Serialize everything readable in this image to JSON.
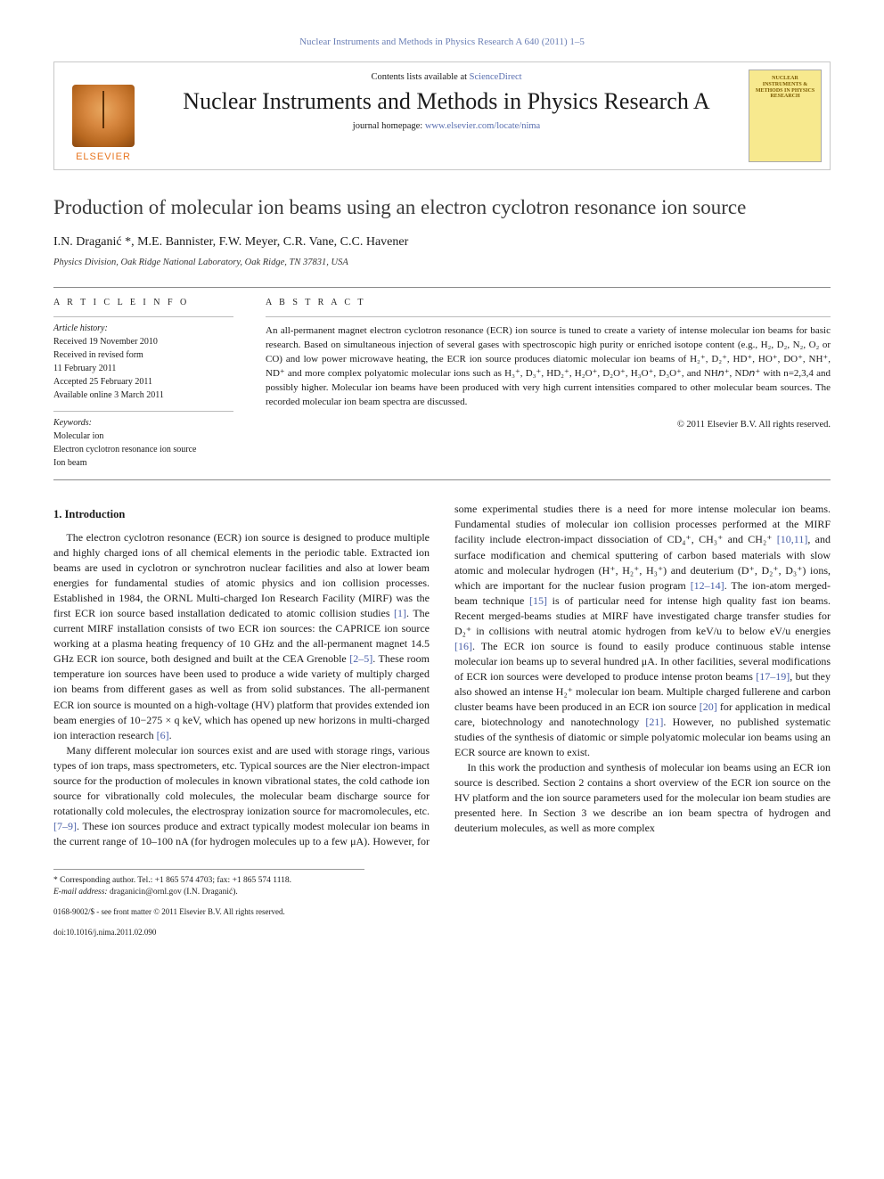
{
  "header": {
    "journal_citation": "Nuclear Instruments and Methods in Physics Research A 640 (2011) 1–5",
    "contents_prefix": "Contents lists available at ",
    "contents_link": "ScienceDirect",
    "journal_title": "Nuclear Instruments and Methods in Physics Research A",
    "homepage_prefix": "journal homepage: ",
    "homepage_link": "www.elsevier.com/locate/nima",
    "publisher": "ELSEVIER",
    "cover_text": "NUCLEAR INSTRUMENTS & METHODS IN PHYSICS RESEARCH"
  },
  "article": {
    "title": "Production of molecular ion beams using an electron cyclotron resonance ion source",
    "authors": "I.N. Draganić *, M.E. Bannister, F.W. Meyer, C.R. Vane, C.C. Havener",
    "affiliation": "Physics Division, Oak Ridge National Laboratory, Oak Ridge, TN 37831, USA"
  },
  "info": {
    "head": "A R T I C L E   I N F O",
    "history_label": "Article history:",
    "received": "Received 19 November 2010",
    "revised1": "Received in revised form",
    "revised2": "11 February 2011",
    "accepted": "Accepted 25 February 2011",
    "online": "Available online 3 March 2011",
    "keywords_label": "Keywords:",
    "kw1": "Molecular ion",
    "kw2": "Electron cyclotron resonance ion source",
    "kw3": "Ion beam"
  },
  "abstract": {
    "head": "A B S T R A C T",
    "text": "An all-permanent magnet electron cyclotron resonance (ECR) ion source is tuned to create a variety of intense molecular ion beams for basic research. Based on simultaneous injection of several gases with spectroscopic high purity or enriched isotope content (e.g., H₂, D₂, N₂, O₂ or CO) and low power microwave heating, the ECR ion source produces diatomic molecular ion beams of H₂⁺, D₂⁺, HD⁺, HO⁺, DO⁺, NH⁺, ND⁺ and more complex polyatomic molecular ions such as H₃⁺, D₃⁺, HD₂⁺, H₂O⁺, D₂O⁺, H₃O⁺, D₃O⁺, and NH𝘯⁺, ND𝘯⁺ with n=2,3,4 and possibly higher. Molecular ion beams have been produced with very high current intensities compared to other molecular beam sources. The recorded molecular ion beam spectra are discussed.",
    "copyright": "© 2011 Elsevier B.V. All rights reserved."
  },
  "body": {
    "sec1_head": "1. Introduction",
    "p1": "The electron cyclotron resonance (ECR) ion source is designed to produce multiple and highly charged ions of all chemical elements in the periodic table. Extracted ion beams are used in cyclotron or synchrotron nuclear facilities and also at lower beam energies for fundamental studies of atomic physics and ion collision processes. Established in 1984, the ORNL Multi-charged Ion Research Facility (MIRF) was the first ECR ion source based installation dedicated to atomic collision studies [1]. The current MIRF installation consists of two ECR ion sources: the CAPRICE ion source working at a plasma heating frequency of 10 GHz and the all-permanent magnet 14.5 GHz ECR ion source, both designed and built at the CEA Grenoble [2–5]. These room temperature ion sources have been used to produce a wide variety of multiply charged ion beams from different gases as well as from solid substances. The all-permanent ECR ion source is mounted on a high-voltage (HV) platform that provides extended ion beam energies of 10−275 × q keV, which has opened up new horizons in multi-charged ion interaction research [6].",
    "p2": "Many different molecular ion sources exist and are used with storage rings, various types of ion traps, mass spectrometers, etc. Typical sources are the Nier electron-impact source for the production of molecules in known vibrational states, the cold cathode ion source for vibrationally cold molecules, the molecular beam discharge source for rotationally cold molecules, the electrospray ionization source for macromolecules, etc. [7–9]. These ion sources produce and extract typically modest molecular ion beams in the current range of 10–100 nA (for hydrogen molecules up to a few μA). However, for some experimental studies there is a need for more intense molecular ion beams. Fundamental studies of molecular ion collision processes performed at the MIRF facility include electron-impact dissociation of CD₄⁺, CH₃⁺ and CH₂⁺ [10,11], and surface modification and chemical sputtering of carbon based materials with slow atomic and molecular hydrogen (H⁺, H₂⁺, H₃⁺) and deuterium (D⁺, D₂⁺, D₃⁺) ions, which are important for the nuclear fusion program [12–14]. The ion-atom merged-beam technique [15] is of particular need for intense high quality fast ion beams. Recent merged-beams studies at MIRF have investigated charge transfer studies for D₂⁺ in collisions with neutral atomic hydrogen from keV/u to below eV/u energies [16]. The ECR ion source is found to easily produce continuous stable intense molecular ion beams up to several hundred μA. In other facilities, several modifications of ECR ion sources were developed to produce intense proton beams [17–19], but they also showed an intense H₂⁺ molecular ion beam. Multiple charged fullerene and carbon cluster beams have been produced in an ECR ion source [20] for application in medical care, biotechnology and nanotechnology [21]. However, no published systematic studies of the synthesis of diatomic or simple polyatomic molecular ion beams using an ECR source are known to exist.",
    "p3": "In this work the production and synthesis of molecular ion beams using an ECR ion source is described. Section 2 contains a short overview of the ECR ion source on the HV platform and the ion source parameters used for the molecular ion beam studies are presented here. In Section 3 we describe an ion beam spectra of hydrogen and deuterium molecules, as well as more complex"
  },
  "footer": {
    "corr": "* Corresponding author. Tel.: +1 865 574 4703; fax: +1 865 574 1118.",
    "email_label": "E-mail address:",
    "email": "draganicin@ornl.gov (I.N. Draganić).",
    "copy1": "0168-9002/$ - see front matter © 2011 Elsevier B.V. All rights reserved.",
    "copy2": "doi:10.1016/j.nima.2011.02.090"
  },
  "colors": {
    "link": "#5a6fb0",
    "elsevier": "#e87722",
    "text": "#1a1a1a",
    "rule": "#8a8a8a"
  }
}
